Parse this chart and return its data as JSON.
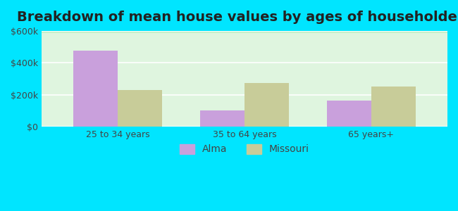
{
  "title": "Breakdown of mean house values by ages of householders",
  "categories": [
    "25 to 34 years",
    "35 to 64 years",
    "65 years+"
  ],
  "alma_values": [
    475000,
    100000,
    162000
  ],
  "missouri_values": [
    230000,
    275000,
    252000
  ],
  "alma_color": "#c9a0dc",
  "missouri_color": "#c8cc99",
  "ylim": [
    0,
    600000
  ],
  "yticks": [
    0,
    200000,
    400000,
    600000
  ],
  "ytick_labels": [
    "$0",
    "$200k",
    "$400k",
    "$600k"
  ],
  "background_outer": "#00e5ff",
  "background_inner_top": "#e8f5e9",
  "background_inner_bottom": "#c8f5c8",
  "bar_width": 0.35,
  "title_fontsize": 14,
  "legend_labels": [
    "Alma",
    "Missouri"
  ]
}
